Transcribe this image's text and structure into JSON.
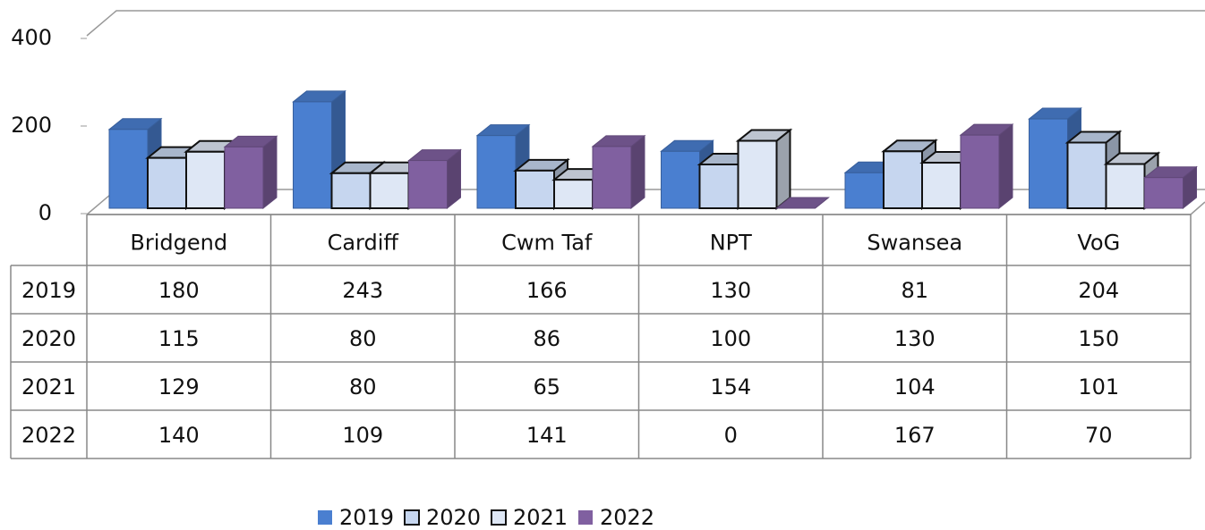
{
  "chart_data": {
    "type": "bar3d",
    "categories": [
      "Bridgend",
      "Cardiff",
      "Cwm Taf",
      "NPT",
      "Swansea",
      "VoG"
    ],
    "series": [
      {
        "name": "2019",
        "color": "#4a7fd0",
        "values": [
          180,
          243,
          166,
          130,
          81,
          204
        ]
      },
      {
        "name": "2020",
        "color": "#c6d6ef",
        "values": [
          115,
          80,
          86,
          100,
          130,
          150
        ]
      },
      {
        "name": "2021",
        "color": "#dee7f5",
        "values": [
          129,
          80,
          65,
          154,
          104,
          101
        ]
      },
      {
        "name": "2022",
        "color": "#8060a0",
        "values": [
          140,
          109,
          141,
          0,
          167,
          70
        ]
      }
    ],
    "ylim": [
      0,
      400
    ],
    "yticks": [
      0,
      200,
      400
    ],
    "data_table": true,
    "legend": "bottom"
  }
}
